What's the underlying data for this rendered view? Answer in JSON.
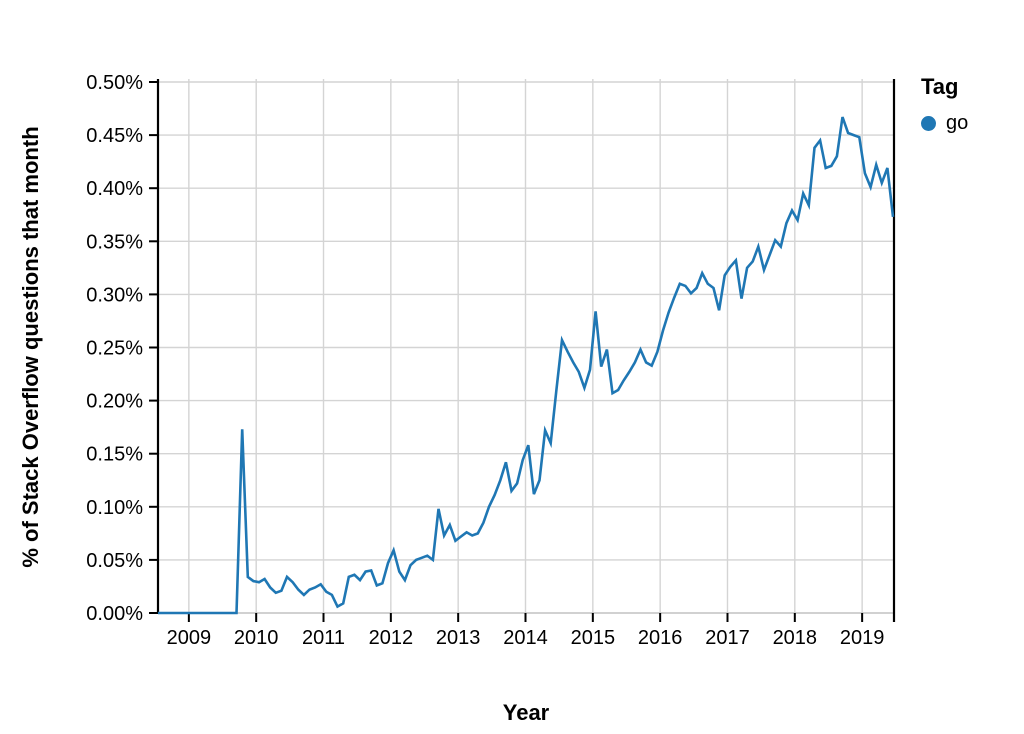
{
  "colors": {
    "line": "#1f77b4",
    "grid": "#d4d4d4",
    "baseline": "#c9c9c9",
    "axis": "#000000",
    "text": "#000000",
    "background": "#ffffff"
  },
  "chart_data": {
    "type": "line",
    "title": "",
    "xlabel": "Year",
    "ylabel": "% of Stack Overflow questions that month",
    "grid": true,
    "ylim": [
      0,
      0.5
    ],
    "x_ticks": [
      "2009",
      "2010",
      "2011",
      "2012",
      "2013",
      "2014",
      "2015",
      "2016",
      "2017",
      "2018",
      "2019"
    ],
    "y_ticks": [
      {
        "value": 0.0,
        "label": "0.00%"
      },
      {
        "value": 0.05,
        "label": "0.05%"
      },
      {
        "value": 0.1,
        "label": "0.10%"
      },
      {
        "value": 0.15,
        "label": "0.15%"
      },
      {
        "value": 0.2,
        "label": "0.20%"
      },
      {
        "value": 0.25,
        "label": "0.25%"
      },
      {
        "value": 0.3,
        "label": "0.30%"
      },
      {
        "value": 0.35,
        "label": "0.35%"
      },
      {
        "value": 0.4,
        "label": "0.40%"
      },
      {
        "value": 0.45,
        "label": "0.45%"
      },
      {
        "value": 0.5,
        "label": "0.50%"
      }
    ],
    "legend": {
      "title": "Tag",
      "position": "top-right",
      "entries": [
        {
          "label": "go",
          "color": "#1f77b4"
        }
      ]
    },
    "series": [
      {
        "name": "go",
        "color": "#1f77b4",
        "points": [
          [
            "2008-07",
            0.0
          ],
          [
            "2008-08",
            0.0
          ],
          [
            "2008-09",
            0.0
          ],
          [
            "2008-10",
            0.0
          ],
          [
            "2008-11",
            0.0
          ],
          [
            "2008-12",
            0.0
          ],
          [
            "2009-01",
            0.0
          ],
          [
            "2009-02",
            0.0
          ],
          [
            "2009-03",
            0.0
          ],
          [
            "2009-04",
            0.0
          ],
          [
            "2009-05",
            0.0
          ],
          [
            "2009-06",
            0.0
          ],
          [
            "2009-07",
            0.0
          ],
          [
            "2009-08",
            0.0
          ],
          [
            "2009-09",
            0.0
          ],
          [
            "2009-10",
            0.173
          ],
          [
            "2009-11",
            0.034
          ],
          [
            "2009-12",
            0.03
          ],
          [
            "2010-01",
            0.029
          ],
          [
            "2010-02",
            0.032
          ],
          [
            "2010-03",
            0.024
          ],
          [
            "2010-04",
            0.019
          ],
          [
            "2010-05",
            0.021
          ],
          [
            "2010-06",
            0.034
          ],
          [
            "2010-07",
            0.029
          ],
          [
            "2010-08",
            0.022
          ],
          [
            "2010-09",
            0.017
          ],
          [
            "2010-10",
            0.022
          ],
          [
            "2010-11",
            0.024
          ],
          [
            "2010-12",
            0.027
          ],
          [
            "2011-01",
            0.02
          ],
          [
            "2011-02",
            0.017
          ],
          [
            "2011-03",
            0.006
          ],
          [
            "2011-04",
            0.009
          ],
          [
            "2011-05",
            0.034
          ],
          [
            "2011-06",
            0.036
          ],
          [
            "2011-07",
            0.031
          ],
          [
            "2011-08",
            0.039
          ],
          [
            "2011-09",
            0.04
          ],
          [
            "2011-10",
            0.026
          ],
          [
            "2011-11",
            0.028
          ],
          [
            "2011-12",
            0.047
          ],
          [
            "2012-01",
            0.059
          ],
          [
            "2012-02",
            0.039
          ],
          [
            "2012-03",
            0.031
          ],
          [
            "2012-04",
            0.045
          ],
          [
            "2012-05",
            0.05
          ],
          [
            "2012-06",
            0.052
          ],
          [
            "2012-07",
            0.054
          ],
          [
            "2012-08",
            0.05
          ],
          [
            "2012-09",
            0.098
          ],
          [
            "2012-10",
            0.073
          ],
          [
            "2012-11",
            0.083
          ],
          [
            "2012-12",
            0.068
          ],
          [
            "2013-01",
            0.072
          ],
          [
            "2013-02",
            0.076
          ],
          [
            "2013-03",
            0.073
          ],
          [
            "2013-04",
            0.075
          ],
          [
            "2013-05",
            0.085
          ],
          [
            "2013-06",
            0.1
          ],
          [
            "2013-07",
            0.111
          ],
          [
            "2013-08",
            0.125
          ],
          [
            "2013-09",
            0.142
          ],
          [
            "2013-10",
            0.115
          ],
          [
            "2013-11",
            0.122
          ],
          [
            "2013-12",
            0.144
          ],
          [
            "2014-01",
            0.158
          ],
          [
            "2014-02",
            0.112
          ],
          [
            "2014-03",
            0.125
          ],
          [
            "2014-04",
            0.172
          ],
          [
            "2014-05",
            0.16
          ],
          [
            "2014-06",
            0.21
          ],
          [
            "2014-07",
            0.257
          ],
          [
            "2014-08",
            0.246
          ],
          [
            "2014-09",
            0.236
          ],
          [
            "2014-10",
            0.227
          ],
          [
            "2014-11",
            0.212
          ],
          [
            "2014-12",
            0.229
          ],
          [
            "2015-01",
            0.284
          ],
          [
            "2015-02",
            0.232
          ],
          [
            "2015-03",
            0.248
          ],
          [
            "2015-04",
            0.207
          ],
          [
            "2015-05",
            0.21
          ],
          [
            "2015-06",
            0.219
          ],
          [
            "2015-07",
            0.227
          ],
          [
            "2015-08",
            0.236
          ],
          [
            "2015-09",
            0.248
          ],
          [
            "2015-10",
            0.236
          ],
          [
            "2015-11",
            0.233
          ],
          [
            "2015-12",
            0.246
          ],
          [
            "2016-01",
            0.266
          ],
          [
            "2016-02",
            0.283
          ],
          [
            "2016-03",
            0.297
          ],
          [
            "2016-04",
            0.31
          ],
          [
            "2016-05",
            0.308
          ],
          [
            "2016-06",
            0.301
          ],
          [
            "2016-07",
            0.306
          ],
          [
            "2016-08",
            0.32
          ],
          [
            "2016-09",
            0.31
          ],
          [
            "2016-10",
            0.306
          ],
          [
            "2016-11",
            0.285
          ],
          [
            "2016-12",
            0.318
          ],
          [
            "2017-01",
            0.326
          ],
          [
            "2017-02",
            0.332
          ],
          [
            "2017-03",
            0.296
          ],
          [
            "2017-04",
            0.325
          ],
          [
            "2017-05",
            0.331
          ],
          [
            "2017-06",
            0.345
          ],
          [
            "2017-07",
            0.323
          ],
          [
            "2017-08",
            0.337
          ],
          [
            "2017-09",
            0.351
          ],
          [
            "2017-10",
            0.345
          ],
          [
            "2017-11",
            0.367
          ],
          [
            "2017-12",
            0.379
          ],
          [
            "2018-01",
            0.37
          ],
          [
            "2018-02",
            0.395
          ],
          [
            "2018-03",
            0.384
          ],
          [
            "2018-04",
            0.438
          ],
          [
            "2018-05",
            0.445
          ],
          [
            "2018-06",
            0.419
          ],
          [
            "2018-07",
            0.421
          ],
          [
            "2018-08",
            0.43
          ],
          [
            "2018-09",
            0.467
          ],
          [
            "2018-10",
            0.452
          ],
          [
            "2018-11",
            0.45
          ],
          [
            "2018-12",
            0.448
          ],
          [
            "2019-01",
            0.414
          ],
          [
            "2019-02",
            0.401
          ],
          [
            "2019-03",
            0.422
          ],
          [
            "2019-04",
            0.405
          ],
          [
            "2019-05",
            0.419
          ],
          [
            "2019-06",
            0.373
          ]
        ]
      }
    ]
  }
}
